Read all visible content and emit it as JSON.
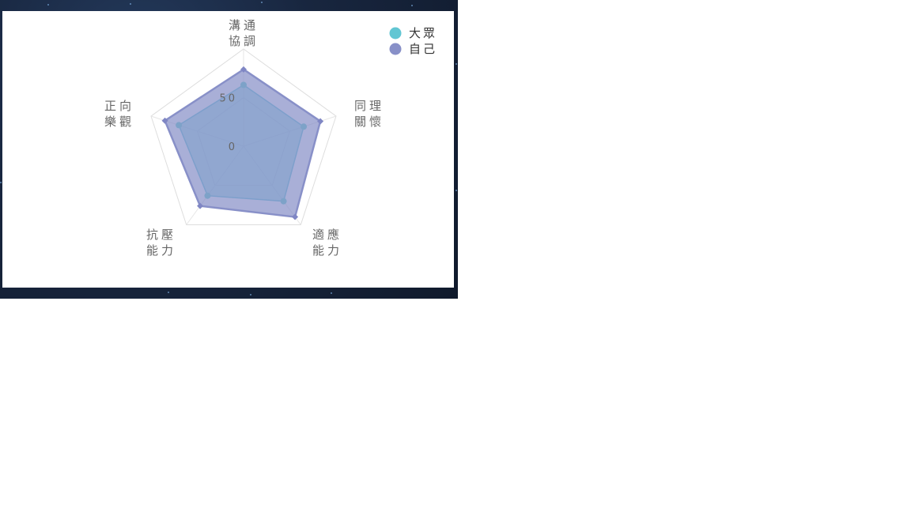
{
  "chart_data": {
    "type": "radar",
    "indicators": [
      [
        "溝通",
        "協調"
      ],
      [
        "同理",
        "關懷"
      ],
      [
        "適應",
        "能力"
      ],
      [
        "抗壓",
        "能力"
      ],
      [
        "正向",
        "樂觀"
      ]
    ],
    "ticks": [
      "50",
      "0"
    ],
    "rlim": [
      0,
      100
    ],
    "series": [
      {
        "name": "大眾",
        "color": "#62c6d3",
        "values": [
          63,
          65,
          70,
          63,
          70
        ]
      },
      {
        "name": "自己",
        "color": "#8890c8",
        "values": [
          79,
          83,
          90,
          76,
          85
        ]
      }
    ],
    "legend_position": "top-right",
    "grid": true
  }
}
